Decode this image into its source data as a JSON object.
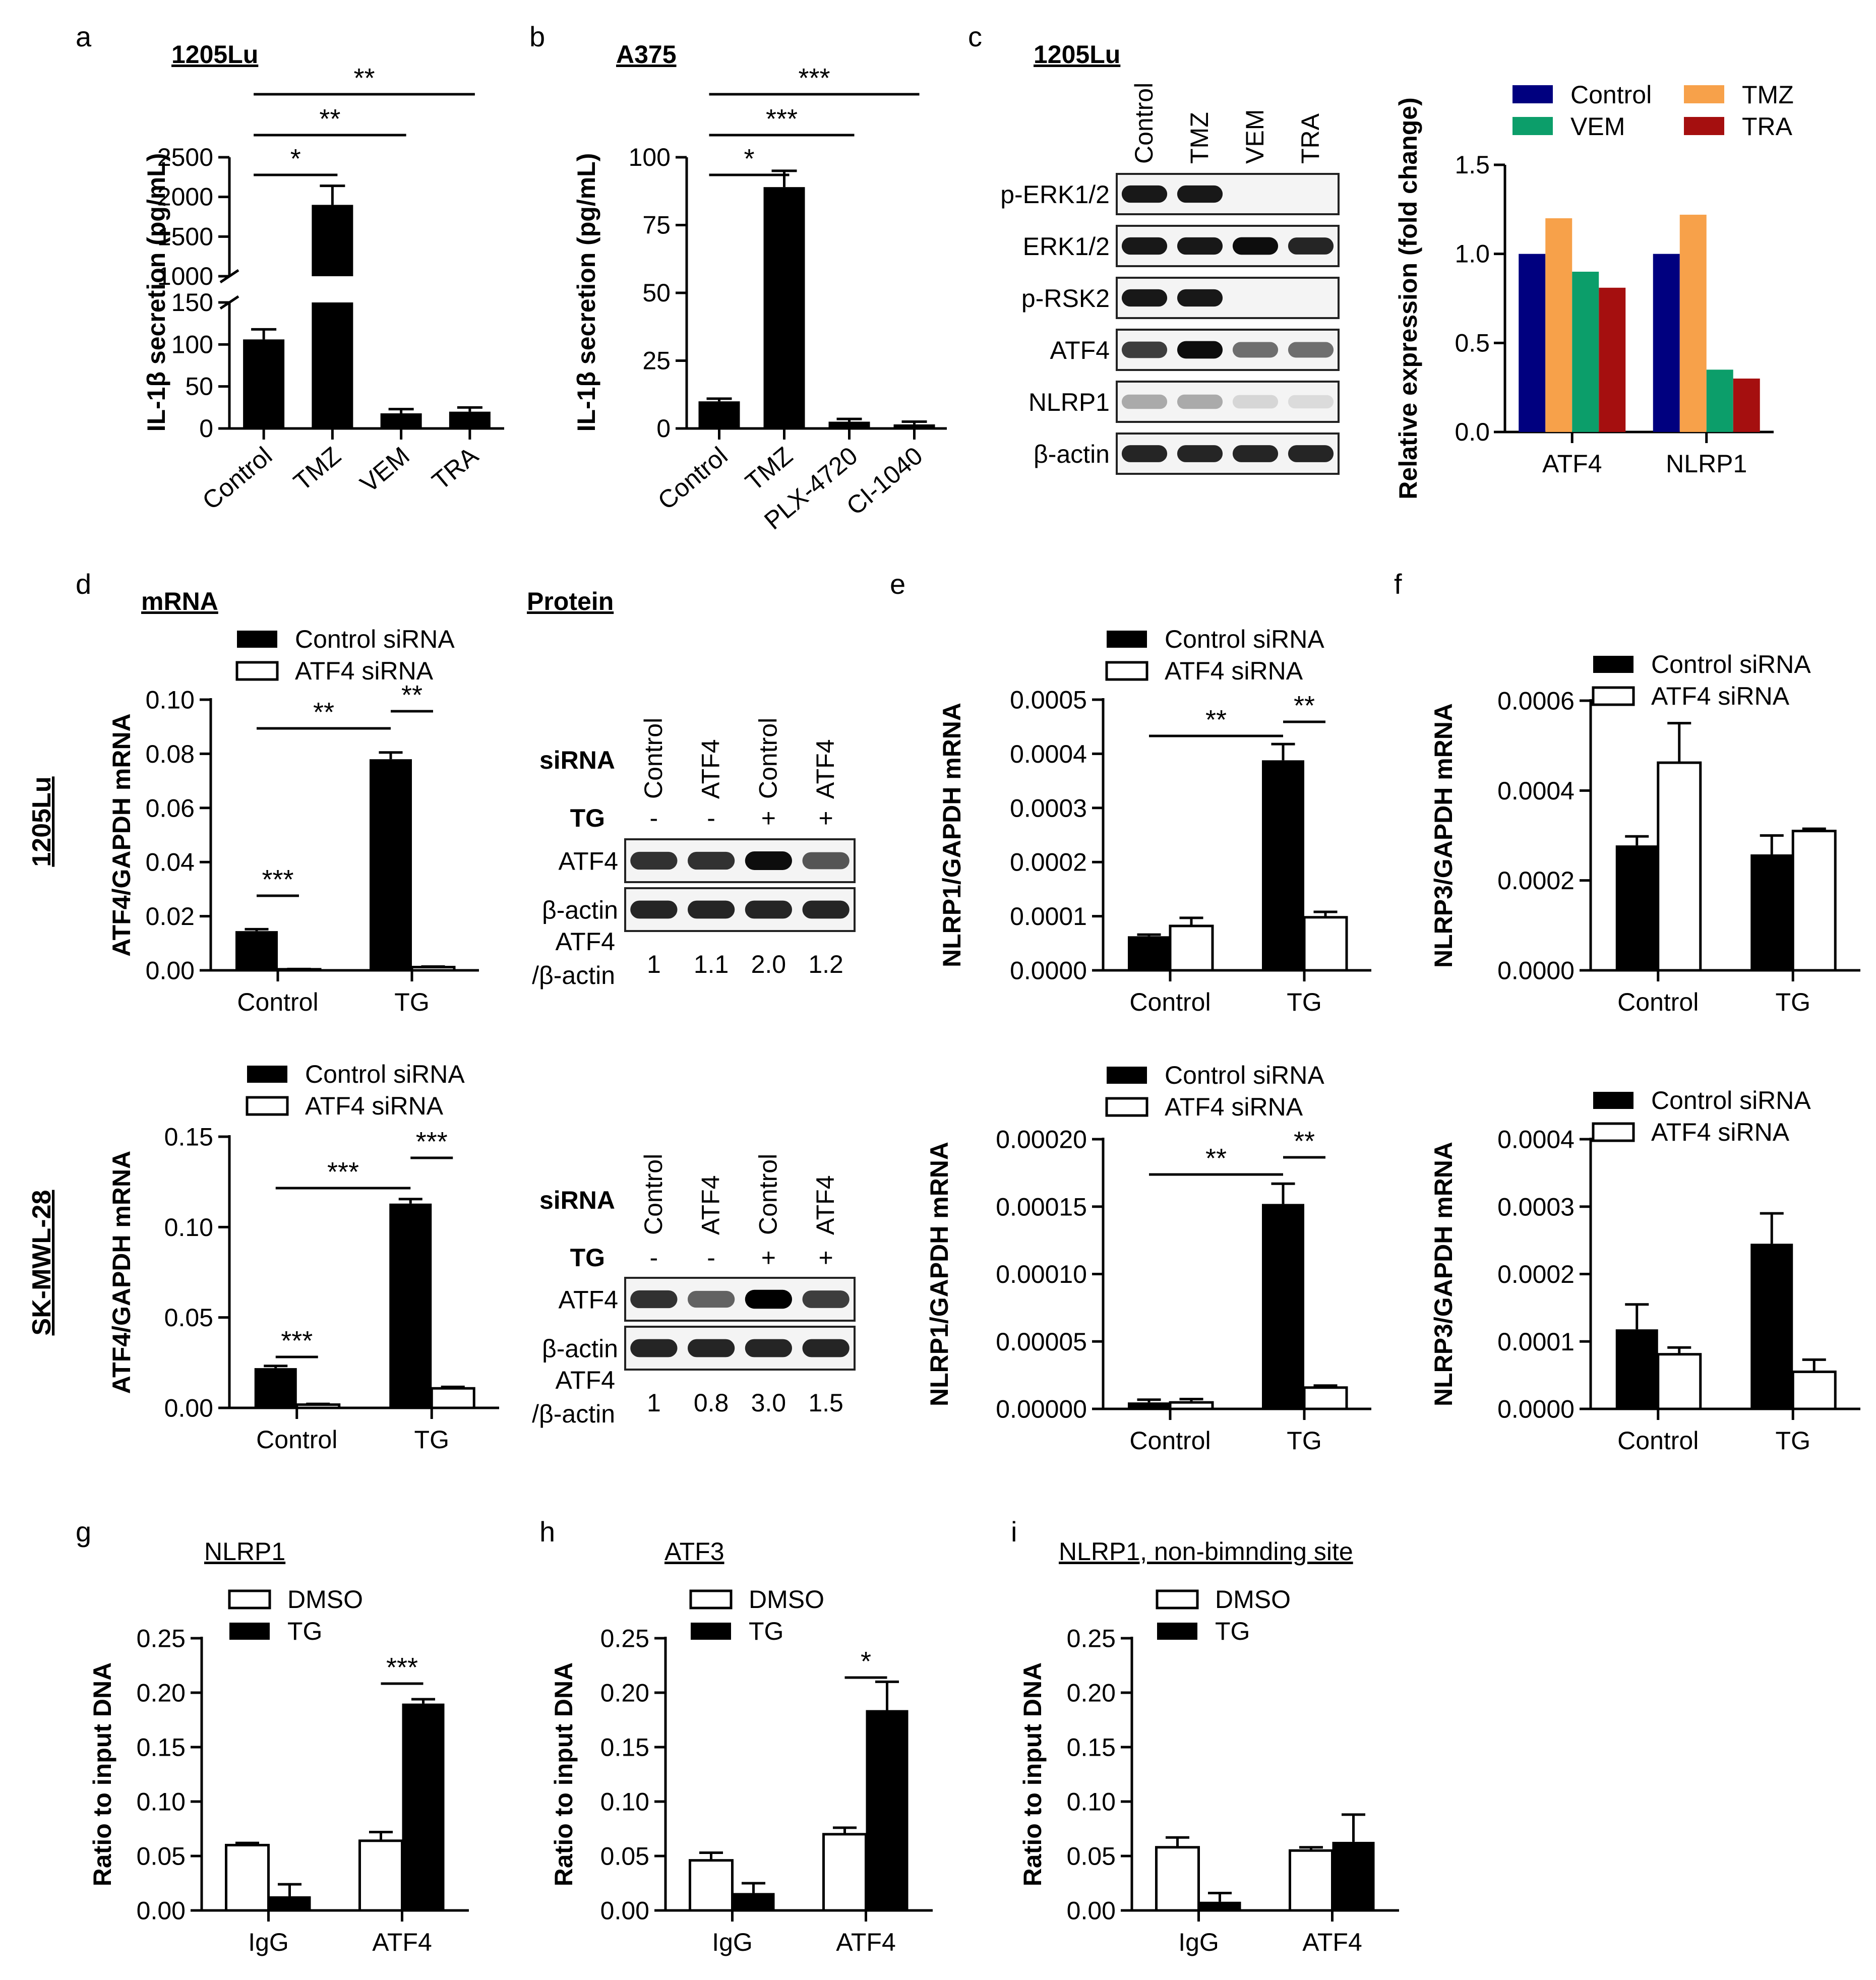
{
  "chart_data": [
    {
      "id": "a",
      "type": "bar",
      "panel_letter": "a",
      "title": "1205Lu",
      "ylabel": "IL-1β secretion (pg/mL)",
      "categories": [
        "Control",
        "TMZ",
        "VEM",
        "TRA"
      ],
      "values": [
        106,
        1900,
        18,
        20
      ],
      "errors": [
        12,
        240,
        5,
        5
      ],
      "ylim_lower": [
        0,
        150
      ],
      "ylim_upper": [
        1000,
        2500
      ],
      "yticks_lower": [
        "0",
        "50",
        "100",
        "150"
      ],
      "yticks_upper": [
        "1000",
        "1500",
        "2000",
        "2500"
      ],
      "significance": [
        {
          "from": "Control",
          "to": "TMZ",
          "label": "*"
        },
        {
          "from": "Control",
          "to": "VEM",
          "label": "**"
        },
        {
          "from": "Control",
          "to": "TRA",
          "label": "**"
        }
      ]
    },
    {
      "id": "b",
      "type": "bar",
      "panel_letter": "b",
      "title": "A375",
      "ylabel": "IL-1β secretion (pg/mL)",
      "categories": [
        "Control",
        "TMZ",
        "PLX-4720",
        "CI-1040"
      ],
      "values": [
        10,
        89,
        2.5,
        1.5
      ],
      "errors": [
        1,
        6,
        1,
        1
      ],
      "ylim": [
        0,
        100
      ],
      "yticks": [
        "0",
        "25",
        "50",
        "75",
        "100"
      ],
      "significance": [
        {
          "from": "Control",
          "to": "TMZ",
          "label": "*"
        },
        {
          "from": "Control",
          "to": "PLX-4720",
          "label": "***"
        },
        {
          "from": "Control",
          "to": "CI-1040",
          "label": "***"
        }
      ]
    },
    {
      "id": "c_blot",
      "type": "western_blot",
      "panel_letter": "c",
      "title": "1205Lu",
      "lanes": [
        "Control",
        "TMZ",
        "VEM",
        "TRA"
      ],
      "rows": [
        "p-ERK1/2",
        "ERK1/2",
        "p-RSK2",
        "ATF4",
        "NLRP1",
        "β-actin"
      ],
      "intensity": [
        [
          0.9,
          0.9,
          0,
          0
        ],
        [
          0.9,
          0.9,
          0.95,
          0.85
        ],
        [
          0.9,
          0.9,
          0,
          0
        ],
        [
          0.75,
          0.95,
          0.55,
          0.55
        ],
        [
          0.3,
          0.3,
          0.12,
          0.1
        ],
        [
          0.85,
          0.85,
          0.85,
          0.85
        ]
      ]
    },
    {
      "id": "c_chart",
      "type": "bar",
      "ylabel": "Relative expression (fold change)",
      "categories": [
        "ATF4",
        "NLRP1"
      ],
      "ylim": [
        0,
        1.5
      ],
      "yticks": [
        "0.0",
        "0.5",
        "1.0",
        "1.5"
      ],
      "series": [
        {
          "name": "Control",
          "color": "#00007f",
          "values": [
            1.0,
            1.0
          ]
        },
        {
          "name": "TMZ",
          "color": "#f7a14a",
          "values": [
            1.2,
            1.22
          ]
        },
        {
          "name": "VEM",
          "color": "#0c9e6a",
          "values": [
            0.9,
            0.35
          ]
        },
        {
          "name": "TRA",
          "color": "#a50f0f",
          "values": [
            0.81,
            0.3
          ]
        }
      ]
    },
    {
      "id": "d1",
      "type": "bar",
      "panel_letter": "d",
      "row_label": "1205Lu",
      "subtitle": "mRNA",
      "ylabel": "ATF4/GAPDH mRNA",
      "categories": [
        "Control",
        "TG"
      ],
      "ylim": [
        0,
        0.1
      ],
      "yticks": [
        "0.00",
        "0.02",
        "0.04",
        "0.06",
        "0.08",
        "0.10"
      ],
      "series": [
        {
          "name": "Control siRNA",
          "fill": "black",
          "values": [
            0.0145,
            0.078
          ],
          "errors": [
            0.0007,
            0.0025
          ]
        },
        {
          "name": "ATF4 siRNA",
          "fill": "white",
          "values": [
            0.0004,
            0.0012
          ],
          "errors": [
            0.0001,
            0.0002
          ]
        }
      ],
      "significance": [
        {
          "from": "g0s0",
          "to": "g0s1",
          "label": "***"
        },
        {
          "from": "g1s0",
          "to": "g1s1",
          "label": "**"
        },
        {
          "from": "g0s0",
          "to": "g1s0",
          "label": "**"
        }
      ]
    },
    {
      "id": "d1_blot",
      "type": "western_blot",
      "subtitle": "Protein",
      "sirna_label": "siRNA",
      "tg_label": "TG",
      "lanes": [
        "Control",
        "ATF4",
        "Control",
        "ATF4"
      ],
      "tg": [
        "-",
        "-",
        "+",
        "+"
      ],
      "rows": [
        "ATF4",
        "β-actin"
      ],
      "ratio_label_1": "ATF4",
      "ratio_label_2": "/β-actin",
      "ratios": [
        "1",
        "1.1",
        "2.0",
        "1.2"
      ],
      "intensity": [
        [
          0.8,
          0.8,
          0.95,
          0.65
        ],
        [
          0.85,
          0.85,
          0.85,
          0.85
        ]
      ]
    },
    {
      "id": "e1",
      "type": "bar",
      "panel_letter": "e",
      "ylabel": "NLRP1/GAPDH mRNA",
      "categories": [
        "Control",
        "TG"
      ],
      "ylim": [
        0,
        0.0005
      ],
      "yticks": [
        "0.0000",
        "0.0001",
        "0.0002",
        "0.0003",
        "0.0004",
        "0.0005"
      ],
      "series": [
        {
          "name": "Control siRNA",
          "fill": "black",
          "values": [
            6.3e-05,
            0.000388
          ],
          "errors": [
            3e-06,
            3e-05
          ]
        },
        {
          "name": "ATF4 siRNA",
          "fill": "white",
          "values": [
            8.2e-05,
            9.8e-05
          ],
          "errors": [
            1.5e-05,
            1e-05
          ]
        }
      ],
      "significance": [
        {
          "from": "g1s0",
          "to": "g1s1",
          "label": "**"
        },
        {
          "from": "g0s0",
          "to": "g1s0",
          "label": "**"
        }
      ]
    },
    {
      "id": "f1",
      "type": "bar",
      "panel_letter": "f",
      "ylabel": "NLRP3/GAPDH mRNA",
      "categories": [
        "Control",
        "TG"
      ],
      "ylim": [
        0,
        0.0006
      ],
      "yticks": [
        "0.0000",
        "0.0002",
        "0.0004",
        "0.0006"
      ],
      "series": [
        {
          "name": "Control siRNA",
          "fill": "black",
          "values": [
            0.000278,
            0.000258
          ],
          "errors": [
            2e-05,
            4.2e-05
          ]
        },
        {
          "name": "ATF4 siRNA",
          "fill": "white",
          "values": [
            0.000462,
            0.00031
          ],
          "errors": [
            8.8e-05,
            5e-06
          ]
        }
      ]
    },
    {
      "id": "d2",
      "type": "bar",
      "row_label": "SK-MWL-28",
      "ylabel": "ATF4/GAPDH mRNA",
      "categories": [
        "Control",
        "TG"
      ],
      "ylim": [
        0,
        0.15
      ],
      "yticks": [
        "0.00",
        "0.05",
        "0.10",
        "0.15"
      ],
      "series": [
        {
          "name": "Control siRNA",
          "fill": "black",
          "values": [
            0.022,
            0.113
          ],
          "errors": [
            0.0012,
            0.0025
          ]
        },
        {
          "name": "ATF4 siRNA",
          "fill": "white",
          "values": [
            0.0018,
            0.0108
          ],
          "errors": [
            0.0004,
            0.0008
          ]
        }
      ],
      "significance": [
        {
          "from": "g0s0",
          "to": "g0s1",
          "label": "***"
        },
        {
          "from": "g1s0",
          "to": "g1s1",
          "label": "***"
        },
        {
          "from": "g0s0",
          "to": "g1s0",
          "label": "***"
        }
      ]
    },
    {
      "id": "d2_blot",
      "type": "western_blot",
      "sirna_label": "siRNA",
      "tg_label": "TG",
      "lanes": [
        "Control",
        "ATF4",
        "Control",
        "ATF4"
      ],
      "tg": [
        "-",
        "-",
        "+",
        "+"
      ],
      "rows": [
        "ATF4",
        "β-actin"
      ],
      "ratio_label_1": "ATF4",
      "ratio_label_2": "/β-actin",
      "ratios": [
        "1",
        "0.8",
        "3.0",
        "1.5"
      ],
      "intensity": [
        [
          0.8,
          0.6,
          1.0,
          0.75
        ],
        [
          0.85,
          0.85,
          0.85,
          0.85
        ]
      ]
    },
    {
      "id": "e2",
      "type": "bar",
      "ylabel": "NLRP1/GAPDH mRNA",
      "categories": [
        "Control",
        "TG"
      ],
      "ylim": [
        0,
        0.0002
      ],
      "yticks": [
        "0.00000",
        "0.00005",
        "0.00010",
        "0.00015",
        "0.00020"
      ],
      "series": [
        {
          "name": "Control siRNA",
          "fill": "black",
          "values": [
            4.8e-06,
            0.000152
          ],
          "errors": [
            2e-06,
            1.5e-05
          ]
        },
        {
          "name": "ATF4 siRNA",
          "fill": "white",
          "values": [
            4.8e-06,
            1.58e-05
          ],
          "errors": [
            2.5e-06,
            1.5e-06
          ]
        }
      ],
      "significance": [
        {
          "from": "g1s0",
          "to": "g1s1",
          "label": "**"
        },
        {
          "from": "g0s0",
          "to": "g1s0",
          "label": "**"
        }
      ]
    },
    {
      "id": "f2",
      "type": "bar",
      "ylabel": "NLRP3/GAPDH mRNA",
      "categories": [
        "Control",
        "TG"
      ],
      "ylim": [
        0,
        0.0004
      ],
      "yticks": [
        "0.0000",
        "0.0001",
        "0.0002",
        "0.0003",
        "0.0004"
      ],
      "series": [
        {
          "name": "Control siRNA",
          "fill": "black",
          "values": [
            0.000118,
            0.000245
          ],
          "errors": [
            3.7e-05,
            4.5e-05
          ]
        },
        {
          "name": "ATF4 siRNA",
          "fill": "white",
          "values": [
            8.1e-05,
            5.5e-05
          ],
          "errors": [
            1e-05,
            1.8e-05
          ]
        }
      ]
    },
    {
      "id": "g",
      "type": "bar",
      "panel_letter": "g",
      "title": "NLRP1",
      "ylabel": "Ratio to input DNA",
      "categories": [
        "IgG",
        "ATF4"
      ],
      "ylim": [
        0,
        0.25
      ],
      "yticks": [
        "0.00",
        "0.05",
        "0.10",
        "0.15",
        "0.20",
        "0.25"
      ],
      "series": [
        {
          "name": "DMSO",
          "fill": "white",
          "values": [
            0.06,
            0.064
          ],
          "errors": [
            0.002,
            0.008
          ]
        },
        {
          "name": "TG",
          "fill": "black",
          "values": [
            0.013,
            0.19
          ],
          "errors": [
            0.011,
            0.004
          ]
        }
      ],
      "significance": [
        {
          "from": "g1s0",
          "to": "g1s1",
          "label": "***"
        }
      ]
    },
    {
      "id": "h",
      "type": "bar",
      "panel_letter": "h",
      "title": "ATF3",
      "ylabel": "Ratio to input DNA",
      "categories": [
        "IgG",
        "ATF4"
      ],
      "ylim": [
        0,
        0.25
      ],
      "yticks": [
        "0.00",
        "0.05",
        "0.10",
        "0.15",
        "0.20",
        "0.25"
      ],
      "series": [
        {
          "name": "DMSO",
          "fill": "white",
          "values": [
            0.046,
            0.07
          ],
          "errors": [
            0.007,
            0.006
          ]
        },
        {
          "name": "TG",
          "fill": "black",
          "values": [
            0.016,
            0.184
          ],
          "errors": [
            0.009,
            0.026
          ]
        }
      ],
      "significance": [
        {
          "from": "g1s0",
          "to": "g1s1",
          "label": "*"
        }
      ]
    },
    {
      "id": "i",
      "type": "bar",
      "panel_letter": "i",
      "title": "NLRP1, non-bimnding  site",
      "ylabel": "Ratio to input DNA",
      "categories": [
        "IgG",
        "ATF4"
      ],
      "ylim": [
        0,
        0.25
      ],
      "yticks": [
        "0.00",
        "0.05",
        "0.10",
        "0.15",
        "0.20",
        "0.25"
      ],
      "series": [
        {
          "name": "DMSO",
          "fill": "white",
          "values": [
            0.058,
            0.055
          ],
          "errors": [
            0.009,
            0.003
          ]
        },
        {
          "name": "TG",
          "fill": "black",
          "values": [
            0.008,
            0.063
          ],
          "errors": [
            0.008,
            0.025
          ]
        }
      ]
    }
  ]
}
